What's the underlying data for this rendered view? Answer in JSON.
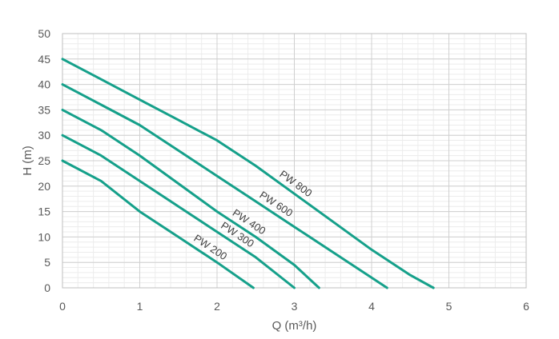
{
  "chart_data": {
    "type": "line",
    "title": "",
    "xlabel": "Q (m³/h)",
    "ylabel": "H (m)",
    "xlim": [
      0,
      6
    ],
    "ylim": [
      0,
      50
    ],
    "x_ticks": [
      0,
      1,
      2,
      3,
      4,
      5,
      6
    ],
    "y_ticks": [
      0,
      5,
      10,
      15,
      20,
      25,
      30,
      35,
      40,
      45,
      50
    ],
    "grid": true,
    "legend": "none (series labeled inline along curves)",
    "line_color": "#15a08a",
    "series": [
      {
        "name": "PW 800",
        "x": [
          0,
          0.5,
          1,
          1.5,
          2,
          2.5,
          3,
          3.5,
          4,
          4.5,
          4.8
        ],
        "y": [
          45,
          41,
          37,
          33,
          29,
          24,
          18.5,
          13,
          7.5,
          2.5,
          0
        ],
        "label_at": 2.95
      },
      {
        "name": "PW 600",
        "x": [
          0,
          0.5,
          1,
          1.5,
          2,
          2.5,
          3,
          3.5,
          4,
          4.2
        ],
        "y": [
          40,
          36,
          32,
          27,
          22,
          17,
          12,
          7,
          2,
          0
        ],
        "label_at": 2.7
      },
      {
        "name": "PW 400",
        "x": [
          0,
          0.5,
          1,
          1.5,
          2,
          2.5,
          3,
          3.32
        ],
        "y": [
          35,
          31,
          26,
          20.5,
          15,
          10,
          4.5,
          0
        ],
        "label_at": 2.35
      },
      {
        "name": "PW 300",
        "x": [
          0,
          0.5,
          1,
          1.5,
          2,
          2.5,
          3
        ],
        "y": [
          30,
          26,
          21,
          16,
          11,
          6,
          0
        ],
        "label_at": 2.2
      },
      {
        "name": "PW 200",
        "x": [
          0,
          0.5,
          1,
          1.5,
          2,
          2.47
        ],
        "y": [
          25,
          21,
          15,
          10,
          5,
          0
        ],
        "label_at": 1.85
      }
    ]
  }
}
